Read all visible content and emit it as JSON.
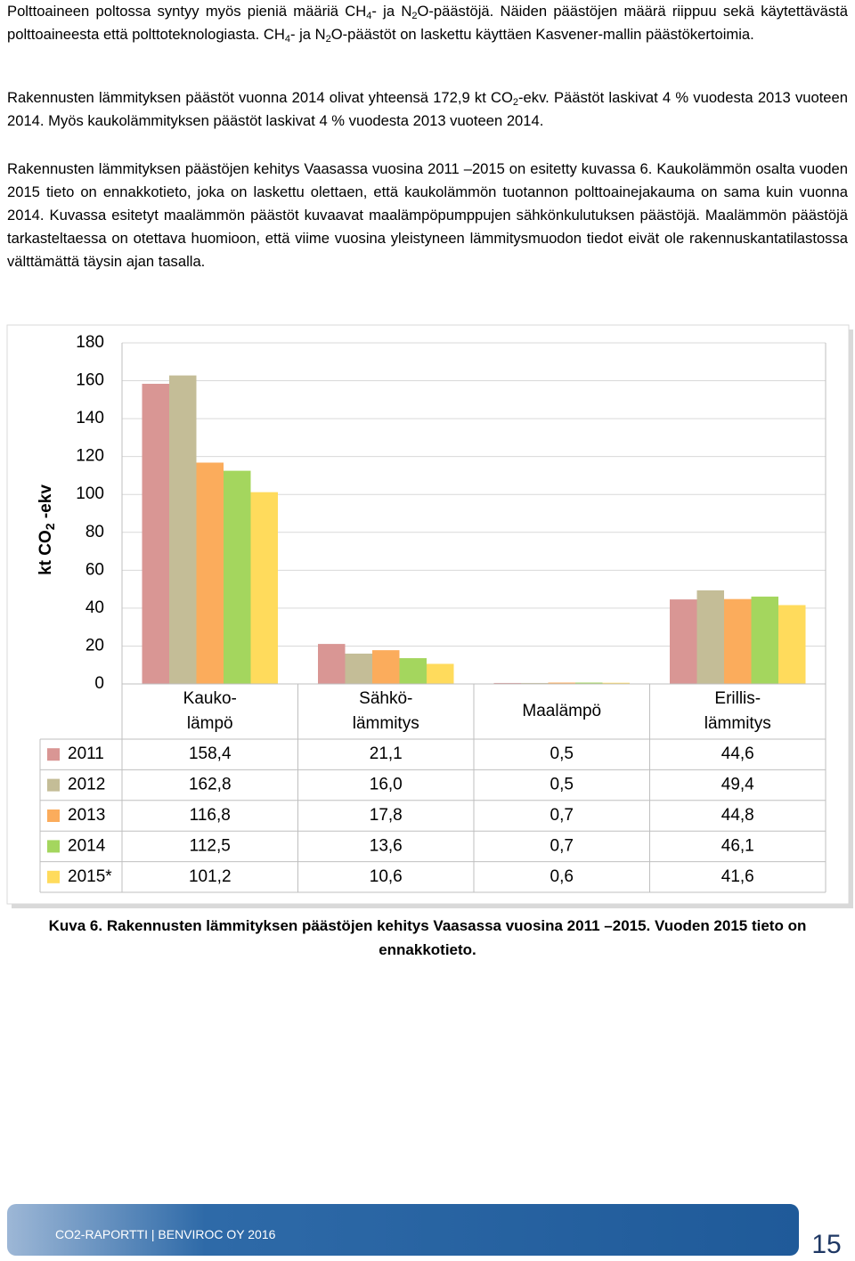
{
  "paragraphs": [
    [
      "Polttoaineen poltossa syntyy myös pieniä määriä CH",
      {
        "sub": "4"
      },
      "- ja N",
      {
        "sub": "2"
      },
      "O-päästöjä. Näiden päästöjen määrä riippuu sekä käytettävästä polttoaineesta että polttoteknologiasta. CH",
      {
        "sub": "4"
      },
      "- ja N",
      {
        "sub": "2"
      },
      "O-päästöt on laskettu käyttäen Kasvener-mallin päästökertoimia."
    ],
    [
      "Rakennusten lämmityksen päästöt vuonna 2014 olivat yhteensä 172,9 kt CO",
      {
        "sub": "2"
      },
      "-ekv. Päästöt laskivat 4 % vuodesta 2013 vuoteen 2014. Myös kaukolämmityksen päästöt laskivat 4 % vuodesta 2013 vuoteen 2014."
    ],
    [
      "Rakennusten lämmityksen päästöjen kehitys Vaasassa vuosina 2011 –2015 on esitetty kuvassa 6. Kaukolämmön osalta vuoden 2015 tieto on ennakkotieto, joka on laskettu olettaen, että kaukolämmön tuotannon polttoainejakauma on sama kuin vuonna 2014. Kuvassa esitetyt maalämmön päästöt kuvaavat maalämpöpumppujen sähkönkulutuksen päästöjä. Maalämmön päästöjä tarkasteltaessa on otettava huomioon, että viime vuosina yleistyneen lämmitysmuodon tiedot eivät ole rakennuskantatilastossa välttämättä täysin ajan tasalla."
    ]
  ],
  "chart_data": {
    "type": "bar",
    "ylabel": [
      "kt CO",
      {
        "sub": "2"
      },
      " -ekv"
    ],
    "categories": [
      "Kauko-\nlämpö",
      "Sähkö-\nlämmitys",
      "Maalämpö",
      "Erillis-\nlämmitys"
    ],
    "series": [
      {
        "name": "2011",
        "color": "#d99694",
        "values": [
          158.4,
          21.1,
          0.5,
          44.6
        ],
        "value_labels": [
          "158,4",
          "21,1",
          "0,5",
          "44,6"
        ]
      },
      {
        "name": "2012",
        "color": "#c4bd97",
        "values": [
          162.8,
          16.0,
          0.5,
          49.4
        ],
        "value_labels": [
          "162,8",
          "16,0",
          "0,5",
          "49,4"
        ]
      },
      {
        "name": "2013",
        "color": "#fbac5c",
        "values": [
          116.8,
          17.8,
          0.7,
          44.8
        ],
        "value_labels": [
          "116,8",
          "17,8",
          "0,7",
          "44,8"
        ]
      },
      {
        "name": "2014",
        "color": "#a4d65e",
        "values": [
          112.5,
          13.6,
          0.7,
          46.1
        ],
        "value_labels": [
          "112,5",
          "13,6",
          "0,7",
          "46,1"
        ]
      },
      {
        "name": "2015*",
        "color": "#ffdb5c",
        "values": [
          101.2,
          10.6,
          0.6,
          41.6
        ],
        "value_labels": [
          "101,2",
          "10,6",
          "0,6",
          "41,6"
        ]
      }
    ],
    "ylim": [
      0,
      180
    ],
    "yticks": [
      0,
      20,
      40,
      60,
      80,
      100,
      120,
      140,
      160,
      180
    ],
    "grid": true
  },
  "caption": "Kuva 6. Rakennusten lämmityksen päästöjen kehitys Vaasassa vuosina 2011 –2015. Vuoden 2015 tieto on ennakkotieto.",
  "footer": {
    "report": "CO2-RAPORTTI | BENVIROC OY 2016",
    "page": "15"
  }
}
